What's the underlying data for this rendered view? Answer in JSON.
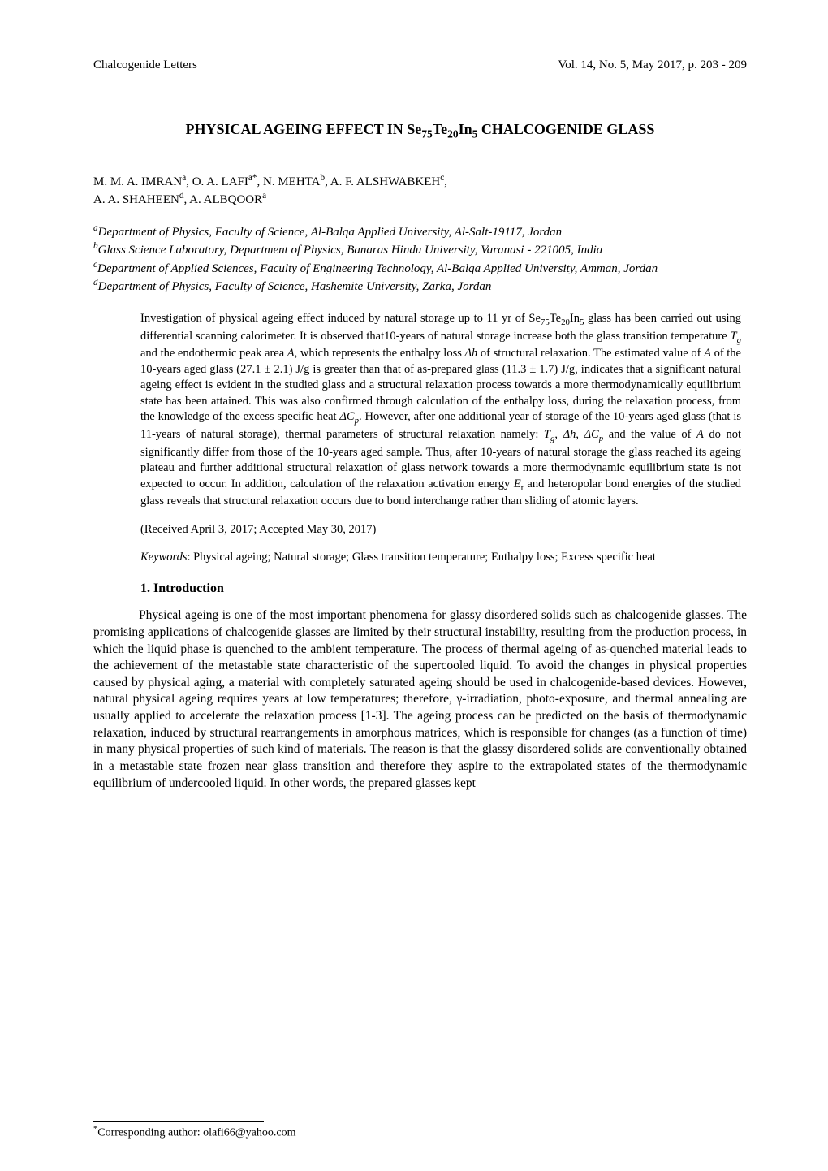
{
  "header": {
    "journal": "Chalcogenide Letters",
    "citation": "Vol. 14, No. 5, May 2017, p. 203 - 209"
  },
  "title_html": "PHYSICAL AGEING EFFECT IN Se<sub>75</sub>Te<sub>20</sub>In<sub>5</sub> CHALCOGENIDE GLASS",
  "authors_line1_html": "M. M. A. IMRAN<sup>a</sup>, O. A. LAFI<sup>a*</sup>, N. MEHTA<sup>b</sup>, A. F. ALSHWABKEH<sup>c</sup>,",
  "authors_line2_html": "A. A. SHAHEEN<sup>d</sup>, A. ALBQOOR<sup>a</sup>",
  "affiliations": [
    "<sup>a</sup>Department of Physics, Faculty of Science, Al-Balqa Applied University, Al-Salt-19117, Jordan",
    "<sup>b</sup>Glass Science Laboratory, Department of Physics, Banaras Hindu University, Varanasi - 221005, India",
    "<sup>c</sup>Department of Applied Sciences, Faculty of Engineering Technology, Al-Balqa Applied University, Amman, Jordan",
    "<sup>d</sup>Department of Physics, Faculty of Science, Hashemite University, Zarka, Jordan"
  ],
  "abstract_html": "Investigation of physical ageing effect induced by natural storage up to 11 yr of Se<sub>75</sub>Te<sub>20</sub>In<sub>5</sub> glass has been carried out using differential scanning calorimeter. It is observed that10-years of natural storage increase both the glass transition temperature <span class=\"ital\">T<sub>g</sub></span> and the endothermic peak area <span class=\"ital\">A</span>, which represents the enthalpy loss <span class=\"ital\">Δh</span> of structural relaxation. The estimated value of <span class=\"ital\">A</span> of the 10-years aged glass (27.1 ± 2.1) J/g is greater than that of as-prepared glass (11.3 ± 1.7) J/g, indicates that a significant natural ageing effect is evident in the studied glass and a structural relaxation process towards a more thermodynamically equilibrium state has been attained. This was also confirmed through calculation of the enthalpy loss, during the relaxation process, from the knowledge of the excess specific heat <span class=\"ital\">ΔC<sub>p</sub></span>. However, after one additional year of storage of the 10-years aged glass (that is 11-years of natural storage), thermal parameters of structural relaxation namely: <span class=\"ital\">T<sub>g</sub></span>, <span class=\"ital\">Δh</span>, <span class=\"ital\">ΔC<sub>p</sub></span> and the value of <span class=\"ital\">A</span> do not significantly differ from those of the 10-years aged sample. Thus, after 10-years of natural storage the glass reached its ageing plateau and further additional structural relaxation of glass network towards a more thermodynamic equilibrium state is not expected to occur. In addition, calculation of the relaxation activation energy <span class=\"ital\">E</span><sub>t</sub> and heteropolar bond energies of the studied glass reveals that structural relaxation occurs due to bond interchange rather than sliding of atomic layers.",
  "received": "(Received April 3, 2017; Accepted May 30, 2017)",
  "keywords_html": "<span class=\"ital\">Keywords</span>: Physical ageing; Natural storage; Glass transition temperature; Enthalpy loss; Excess specific heat",
  "section1_heading": "1. Introduction",
  "body_para1_html": "Physical ageing is one of the most important phenomena for glassy disordered solids such as chalcogenide glasses. The promising applications of chalcogenide glasses are limited by their structural instability, resulting from the production process, in which the liquid phase is quenched to the ambient temperature. The process of thermal ageing of as-quenched material leads to the achievement of the metastable state characteristic of the supercooled liquid. To avoid the changes in physical properties caused by physical aging, a material with completely saturated ageing should be used in chalcogenide-based devices. However, natural physical ageing requires years at low temperatures; therefore, γ-irradiation, photo-exposure, and thermal annealing are usually applied to accelerate the relaxation process [1-3]. The ageing process can be predicted on the basis of thermodynamic relaxation, induced by structural rearrangements in amorphous matrices, which is responsible for changes (as a function of time) in many physical properties of such kind of materials. The reason is that the glassy disordered solids are conventionally obtained in a metastable state frozen near glass transition and therefore they aspire to the extrapolated states of the thermodynamic equilibrium of undercooled liquid. In other words, the prepared glasses kept",
  "footnote_html": "<sup>*</sup>Corresponding author: olafi66@yahoo.com"
}
